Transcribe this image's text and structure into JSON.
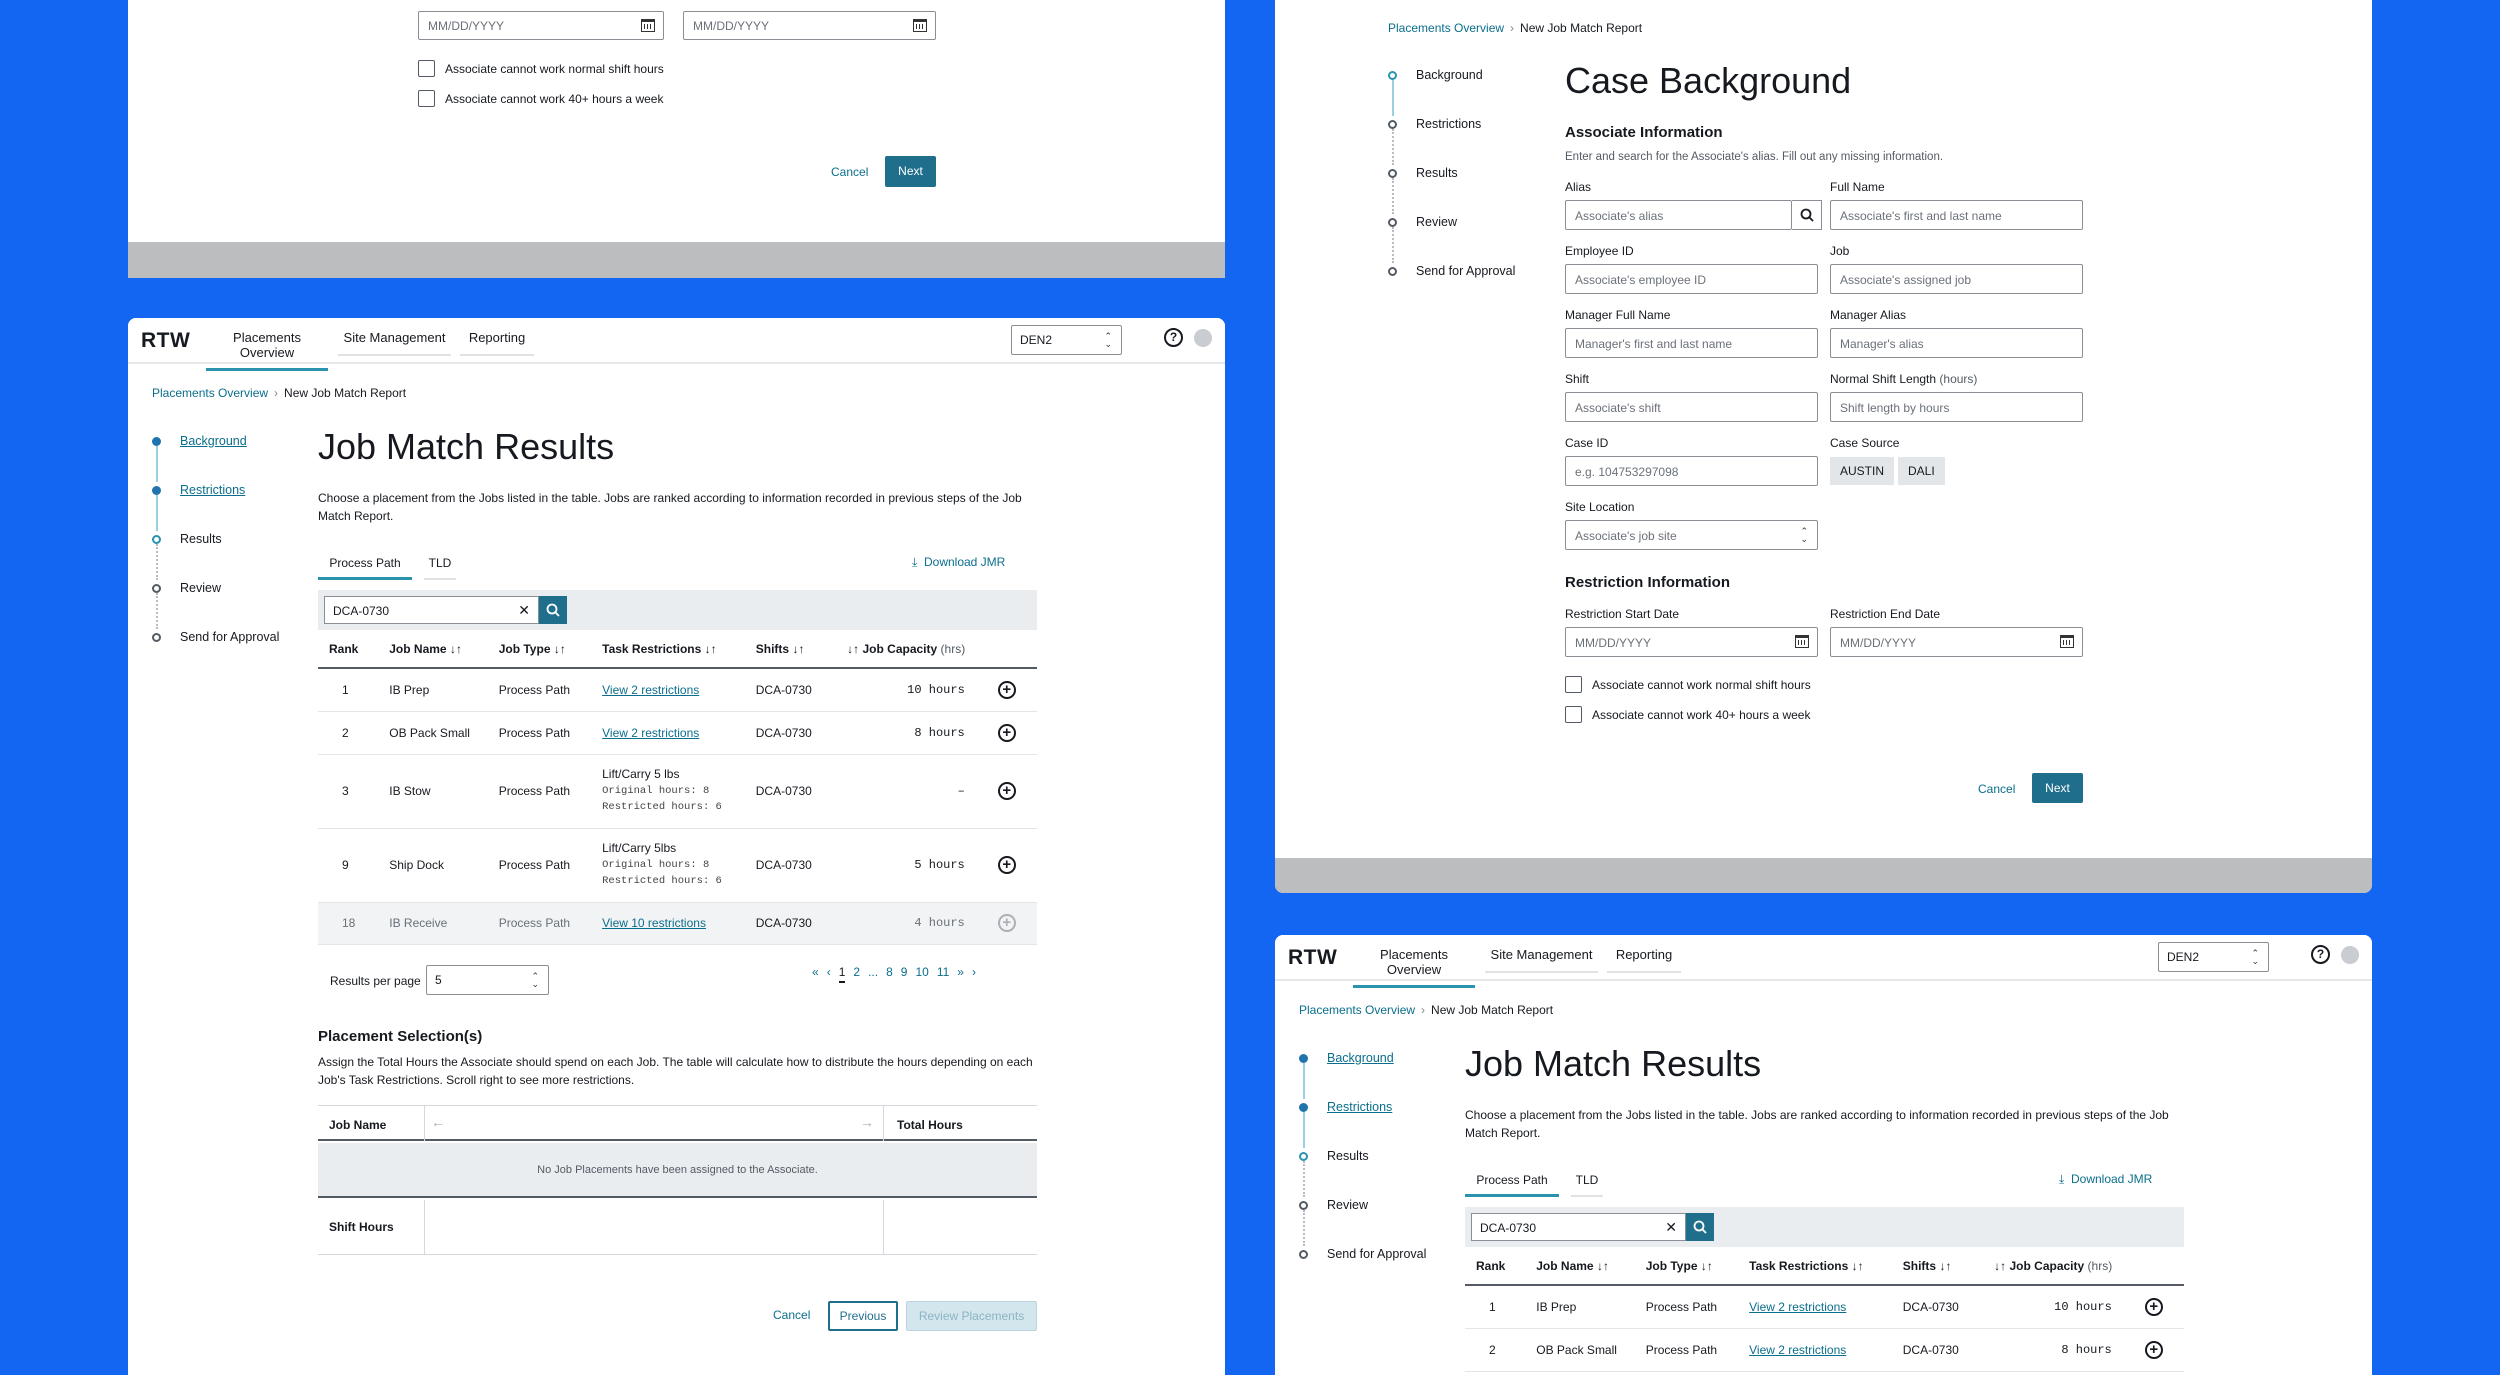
{
  "common": {
    "logo": "RTW",
    "nav": [
      "Placements Overview",
      "Site Management",
      "Reporting"
    ],
    "site": "DEN2",
    "help": "?",
    "breadcrumb": [
      "Placements Overview",
      "New Job Match Report"
    ],
    "steps": [
      "Background",
      "Restrictions",
      "Results",
      "Review",
      "Send for Approval"
    ],
    "cancel": "Cancel",
    "next": "Next",
    "previous": "Previous",
    "review_placements": "Review Placements"
  },
  "results": {
    "title": "Job Match Results",
    "description": "Choose a placement from the Jobs listed in the table. Jobs are ranked according to information recorded in previous steps of the Job Match Report.",
    "tabs": [
      "Process Path",
      "TLD"
    ],
    "download": "Download JMR",
    "filter_value": "DCA-0730",
    "columns": {
      "rank": "Rank",
      "job_name": "Job Name",
      "job_type": "Job Type",
      "task_restrictions": "Task Restrictions",
      "shifts": "Shifts",
      "job_capacity": "Job Capacity",
      "hrs": "(hrs)"
    },
    "sort_icon": "↓↑",
    "rows": [
      {
        "rank": "1",
        "job": "IB Prep",
        "type": "Process Path",
        "restr": "View 2 restrictions",
        "shift": "DCA-0730",
        "cap": "10 hours"
      },
      {
        "rank": "2",
        "job": "OB Pack Small",
        "type": "Process Path",
        "restr": "View 2 restrictions",
        "shift": "DCA-0730",
        "cap": "8 hours"
      },
      {
        "rank": "3",
        "job": "IB Stow",
        "type": "Process Path",
        "restr_title": "Lift/Carry 5 lbs",
        "orig": "Original hours: 8",
        "restricted": "Restricted hours: 6",
        "shift": "DCA-0730",
        "cap": "–"
      },
      {
        "rank": "9",
        "job": "Ship Dock",
        "type": "Process Path",
        "restr_title": "Lift/Carry 5lbs",
        "orig": "Original hours: 8",
        "restricted": "Restricted hours: 6",
        "shift": "DCA-0730",
        "cap": "5 hours"
      },
      {
        "rank": "18",
        "job": "IB Receive",
        "type": "Process Path",
        "restr": "View 10 restrictions",
        "shift": "DCA-0730",
        "cap": "4 hours"
      }
    ],
    "results_per_page_label": "Results per page",
    "results_per_page": "5",
    "pages": [
      "«",
      "‹",
      "1",
      "2",
      "...",
      "8",
      "9",
      "10",
      "11",
      "»",
      "›"
    ],
    "placement_title": "Placement Selection(s)",
    "placement_desc": "Assign the Total Hours the Associate should spend on each Job. The table will calculate how to distribute the hours depending on each Job's Task Restrictions. Scroll right to see more restrictions.",
    "placement_job_name": "Job Name",
    "placement_total": "Total Hours",
    "placement_empty": "No Job Placements have been assigned to the Associate.",
    "shift_hours": "Shift Hours"
  },
  "background": {
    "title": "Case Background",
    "assoc_title": "Associate Information",
    "assoc_desc": "Enter and search for the Associate's alias. Fill out any missing information.",
    "fields": {
      "alias": {
        "label": "Alias",
        "ph": "Associate's alias"
      },
      "full_name": {
        "label": "Full Name",
        "ph": "Associate's first and last name"
      },
      "employee_id": {
        "label": "Employee ID",
        "ph": "Associate's employee ID"
      },
      "job": {
        "label": "Job",
        "ph": "Associate's assigned job"
      },
      "manager_name": {
        "label": "Manager Full Name",
        "ph": "Manager's first and last name"
      },
      "manager_alias": {
        "label": "Manager Alias",
        "ph": "Manager's alias"
      },
      "shift": {
        "label": "Shift",
        "ph": "Associate's shift"
      },
      "shift_length": {
        "label": "Normal Shift Length",
        "hint": "(hours)",
        "ph": "Shift length by hours"
      },
      "case_id": {
        "label": "Case ID",
        "ph": "e.g. 104753297098"
      },
      "case_source": {
        "label": "Case Source",
        "options": [
          "AUSTIN",
          "DALI"
        ]
      },
      "site_location": {
        "label": "Site Location",
        "ph": "Associate's job site"
      }
    },
    "restr_title": "Restriction Information",
    "restr_start": "Restriction Start Date",
    "restr_end": "Restriction End Date",
    "date_ph": "MM/DD/YYYY",
    "chk1": "Associate cannot work normal shift hours",
    "chk2": "Associate cannot work 40+ hours a week"
  }
}
